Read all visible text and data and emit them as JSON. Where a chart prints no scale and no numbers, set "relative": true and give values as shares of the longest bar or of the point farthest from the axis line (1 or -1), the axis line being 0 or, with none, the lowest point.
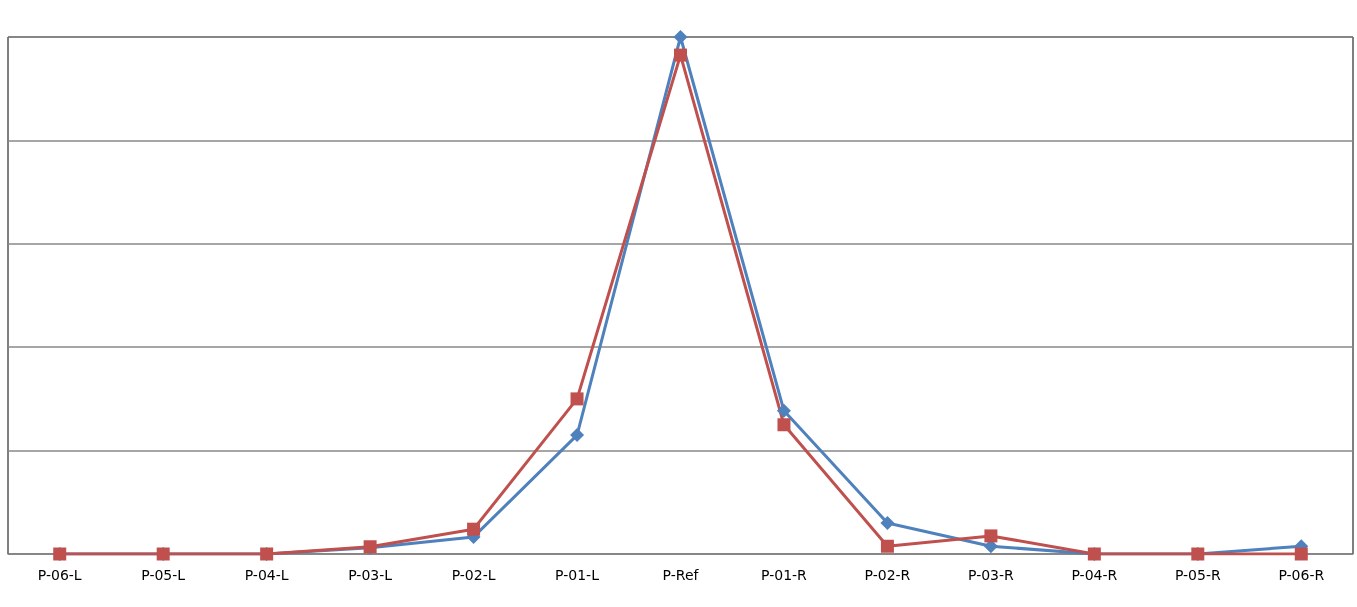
{
  "chart_data": {
    "type": "line",
    "relative": true,
    "grid": "y",
    "categories": [
      "P-06-L",
      "P-05-L",
      "P-04-L",
      "P-03-L",
      "P-02-L",
      "P-01-L",
      "P-Ref",
      "P-01-R",
      "P-02-R",
      "P-03-R",
      "P-04-R",
      "P-05-R",
      "P-06-R"
    ],
    "series": [
      {
        "color": "#4f81bd",
        "marker": "diamond",
        "values": [
          0,
          0,
          0,
          0.012,
          0.033,
          0.23,
          1,
          0.277,
          0.06,
          0.015,
          0,
          0,
          0.015
        ]
      },
      {
        "color": "#c0504d",
        "marker": "square",
        "values": [
          0,
          0,
          0,
          0.014,
          0.048,
          0.3,
          0.965,
          0.25,
          0.015,
          0.035,
          0,
          0,
          0
        ]
      }
    ]
  }
}
